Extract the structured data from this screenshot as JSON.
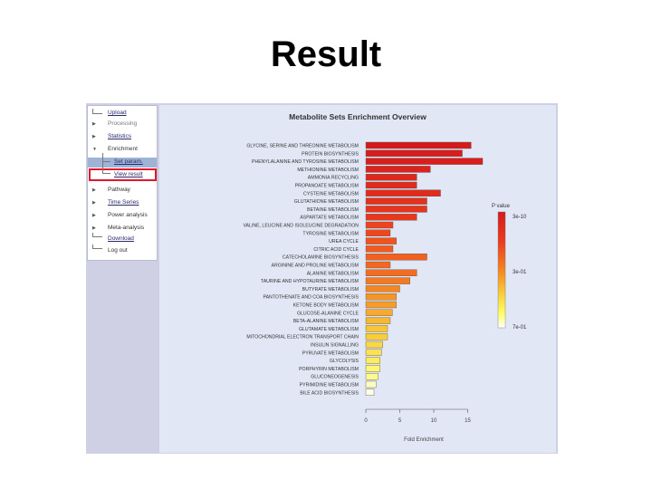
{
  "slide": {
    "title": "Result"
  },
  "sidebar": {
    "items": [
      {
        "label": "Upload",
        "style": "link"
      },
      {
        "label": "Processing",
        "style": "muted"
      },
      {
        "label": "Statistics",
        "style": "link"
      },
      {
        "label": "Enrichment",
        "style": "plain"
      },
      {
        "label": "Set param.",
        "style": "link",
        "sub": true,
        "selected": true
      },
      {
        "label": "View result",
        "style": "link",
        "sub": true,
        "highlighted": true
      },
      {
        "label": "Pathway",
        "style": "plain"
      },
      {
        "label": "Time Series",
        "style": "link"
      },
      {
        "label": "Power analysis",
        "style": "plain"
      },
      {
        "label": "Meta-analysis",
        "style": "plain"
      },
      {
        "label": "Download",
        "style": "link"
      },
      {
        "label": "Log out",
        "style": "plain"
      }
    ],
    "highlight_color": "#e0182a"
  },
  "chart_data": {
    "type": "bar",
    "orientation": "horizontal",
    "title": "Metabolite Sets Enrichment Overview",
    "xlabel": "Fold Enrichment",
    "xlim": [
      0,
      15
    ],
    "xticks": [
      0,
      5,
      10,
      15
    ],
    "categories": [
      "GLYCINE, SERINE AND THREONINE METABOLISM",
      "PROTEIN BIOSYNTHESIS",
      "PHENYLALANINE AND TYROSINE METABOLISM",
      "METHIONINE METABOLISM",
      "AMMONIA RECYCLING",
      "PROPANOATE METABOLISM",
      "CYSTEINE METABOLISM",
      "GLUTATHIONE METABOLISM",
      "BETAINE METABOLISM",
      "ASPARTATE METABOLISM",
      "VALINE, LEUCINE AND ISOLEUCINE DEGRADATION",
      "TYROSINE METABOLISM",
      "UREA CYCLE",
      "CITRIC ACID CYCLE",
      "CATECHOLAMINE BIOSYNTHESIS",
      "ARGININE AND PROLINE METABOLISM",
      "ALANINE METABOLISM",
      "TAURINE AND HYPOTAURINE METABOLISM",
      "BUTYRATE METABOLISM",
      "PANTOTHENATE AND COA BIOSYNTHESIS",
      "KETONE BODY METABOLISM",
      "GLUCOSE-ALANINE CYCLE",
      "BETA-ALANINE METABOLISM",
      "GLUTAMATE METABOLISM",
      "MITOCHONDRIAL ELECTRON TRANSPORT CHAIN",
      "INSULIN SIGNALLING",
      "PYRUVATE METABOLISM",
      "GLYCOLYSIS",
      "PORPHYRIN METABOLISM",
      "GLUCONEOGENESIS",
      "PYRIMIDINE METABOLISM",
      "BILE ACID BIOSYNTHESIS"
    ],
    "values": [
      15.5,
      14.2,
      17.2,
      9.5,
      7.5,
      7.5,
      11.0,
      9.0,
      9.0,
      7.5,
      4.0,
      3.6,
      4.5,
      4.0,
      9.0,
      3.6,
      7.5,
      6.5,
      5.0,
      4.5,
      4.5,
      3.9,
      3.6,
      3.2,
      3.2,
      2.5,
      2.3,
      2.1,
      2.1,
      1.8,
      1.5,
      1.2
    ],
    "color_values": [
      0.0,
      0.02,
      0.03,
      0.06,
      0.1,
      0.12,
      0.12,
      0.16,
      0.18,
      0.2,
      0.28,
      0.3,
      0.34,
      0.36,
      0.38,
      0.4,
      0.42,
      0.46,
      0.5,
      0.54,
      0.56,
      0.6,
      0.64,
      0.68,
      0.7,
      0.74,
      0.78,
      0.82,
      0.86,
      0.9,
      0.96,
      1.0
    ],
    "legend": {
      "title": "P value",
      "labels": [
        "3e-10",
        "3e-01",
        "7e-01"
      ],
      "placement": "right",
      "colors": [
        "#d7191c",
        "#f46d22",
        "#f7b733",
        "#ffee44",
        "#ffffe0",
        "#ffffff"
      ]
    }
  }
}
